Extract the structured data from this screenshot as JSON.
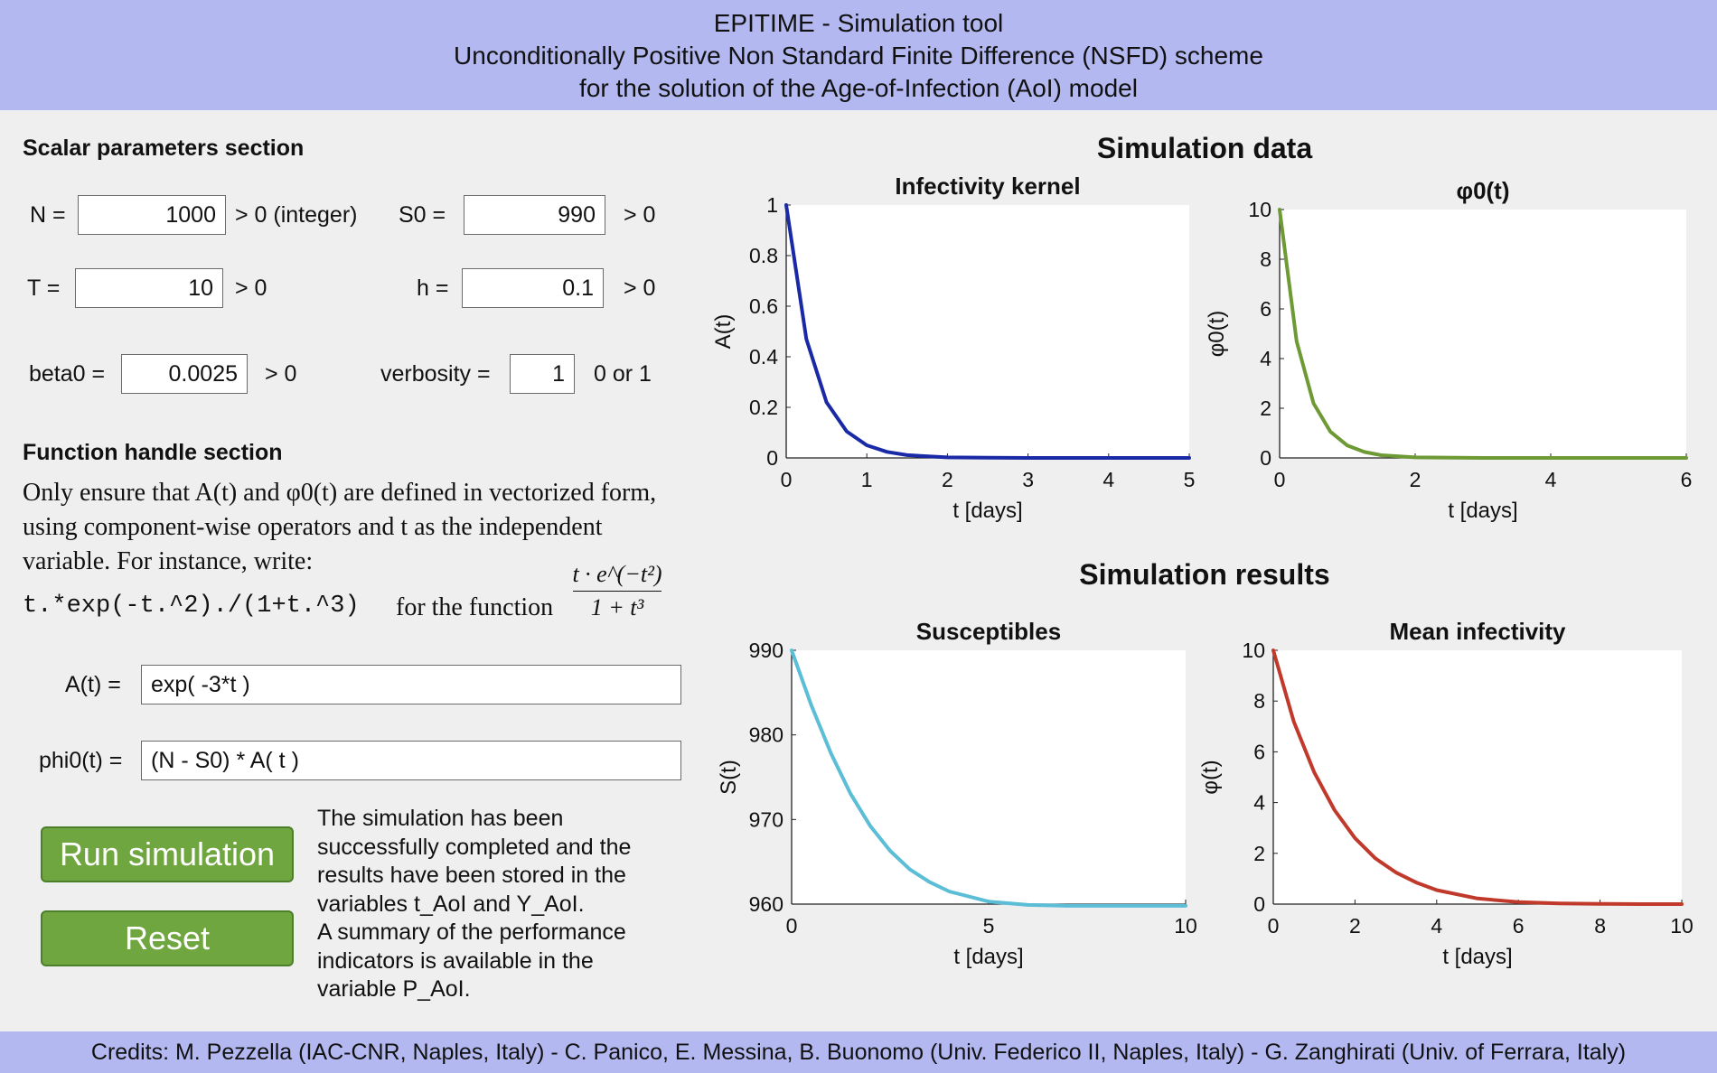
{
  "header": {
    "line1": "EPITIME - Simulation tool",
    "line2": "Unconditionally Positive Non Standard Finite Difference (NSFD) scheme",
    "line3": "for the solution of the Age-of-Infection (AoI) model"
  },
  "scalar": {
    "title": "Scalar parameters section",
    "N": {
      "label": "N =",
      "value": "1000",
      "hint": "> 0 (integer)"
    },
    "S0": {
      "label": "S0 =",
      "value": "990",
      "hint": "> 0"
    },
    "T": {
      "label": "T =",
      "value": "10",
      "hint": "> 0"
    },
    "h": {
      "label": "h =",
      "value": "0.1",
      "hint": "> 0"
    },
    "beta0": {
      "label": "beta0 =",
      "value": "0.0025",
      "hint": "> 0"
    },
    "verbosity": {
      "label": "verbosity =",
      "value": "1",
      "hint": "0 or 1"
    }
  },
  "func": {
    "title": "Function handle section",
    "desc_line1": "Only ensure that A(t) and φ0(t) are defined in vectorized form,",
    "desc_line2": "using component-wise operators and t as the independent",
    "desc_line3": "variable. For instance, write:",
    "example_code": "t.*exp(-t.^2)./(1+t.^3)",
    "example_text": "for the function",
    "frac_num": "t · e^(−t²)",
    "frac_den": "1 + t³",
    "A": {
      "label": "A(t) =",
      "value": "exp( -3*t )"
    },
    "phi0": {
      "label": "phi0(t) =",
      "value": "(N - S0) * A( t )"
    }
  },
  "buttons": {
    "run": "Run simulation",
    "reset": "Reset"
  },
  "status_lines": [
    "The simulation has been",
    "successfully completed and the",
    "results have been stored in the",
    "variables t_AoI and Y_AoI.",
    "A summary of the performance",
    "indicators is available in the",
    "variable P_AoI."
  ],
  "sim_data_title": "Simulation data",
  "sim_results_title": "Simulation results",
  "footer": "Credits: M. Pezzella (IAC-CNR, Naples, Italy) - C. Panico, E. Messina, B. Buonomo (Univ. Federico II, Naples, Italy) - G. Zanghirati (Univ. of Ferrara, Italy)",
  "chart_data": [
    {
      "type": "line",
      "title": "Infectivity kernel",
      "xlabel": "t [days]",
      "ylabel": "A(t)",
      "xlim": [
        0,
        5
      ],
      "ylim": [
        0,
        1
      ],
      "xticks": [
        0,
        1,
        2,
        3,
        4,
        5
      ],
      "yticks": [
        0,
        0.2,
        0.4,
        0.6,
        0.8,
        1
      ],
      "color": "#1a2aa6",
      "x": [
        0,
        0.25,
        0.5,
        0.75,
        1,
        1.25,
        1.5,
        2,
        2.5,
        3,
        4,
        5
      ],
      "y": [
        1,
        0.47,
        0.22,
        0.105,
        0.05,
        0.024,
        0.011,
        0.002,
        0.0006,
        0.0001,
        0,
        0
      ]
    },
    {
      "type": "line",
      "title": "φ0(t)",
      "xlabel": "t [days]",
      "ylabel": "φ0(t)",
      "xlim": [
        0,
        6
      ],
      "ylim": [
        0,
        10
      ],
      "xticks": [
        0,
        2,
        4,
        6
      ],
      "yticks": [
        0,
        2,
        4,
        6,
        8,
        10
      ],
      "color": "#6e9a35",
      "x": [
        0,
        0.25,
        0.5,
        0.75,
        1,
        1.25,
        1.5,
        2,
        3,
        4,
        5,
        6
      ],
      "y": [
        10,
        4.7,
        2.2,
        1.05,
        0.5,
        0.24,
        0.11,
        0.02,
        0,
        0,
        0,
        0
      ]
    },
    {
      "type": "line",
      "title": "Susceptibles",
      "xlabel": "t [days]",
      "ylabel": "S(t)",
      "xlim": [
        0,
        10
      ],
      "ylim": [
        960,
        990
      ],
      "xticks": [
        0,
        5,
        10
      ],
      "yticks": [
        960,
        970,
        980,
        990
      ],
      "color": "#5bbdd6",
      "x": [
        0,
        0.5,
        1,
        1.5,
        2,
        2.5,
        3,
        3.5,
        4,
        5,
        6,
        7,
        8,
        9,
        10
      ],
      "y": [
        990,
        983.5,
        977.8,
        973.0,
        969.2,
        966.3,
        964.1,
        962.6,
        961.5,
        960.3,
        959.9,
        959.8,
        959.8,
        959.8,
        959.8
      ]
    },
    {
      "type": "line",
      "title": "Mean infectivity",
      "xlabel": "t [days]",
      "ylabel": "φ(t)",
      "xlim": [
        0,
        10
      ],
      "ylim": [
        0,
        10
      ],
      "xticks": [
        0,
        2,
        4,
        6,
        8,
        10
      ],
      "yticks": [
        0,
        2,
        4,
        6,
        8,
        10
      ],
      "color": "#c0392b",
      "x": [
        0,
        0.5,
        1,
        1.5,
        2,
        2.5,
        3,
        3.5,
        4,
        5,
        6,
        7,
        8,
        9,
        10
      ],
      "y": [
        10,
        7.2,
        5.2,
        3.7,
        2.6,
        1.8,
        1.25,
        0.85,
        0.55,
        0.22,
        0.08,
        0.03,
        0.01,
        0,
        0
      ]
    }
  ]
}
